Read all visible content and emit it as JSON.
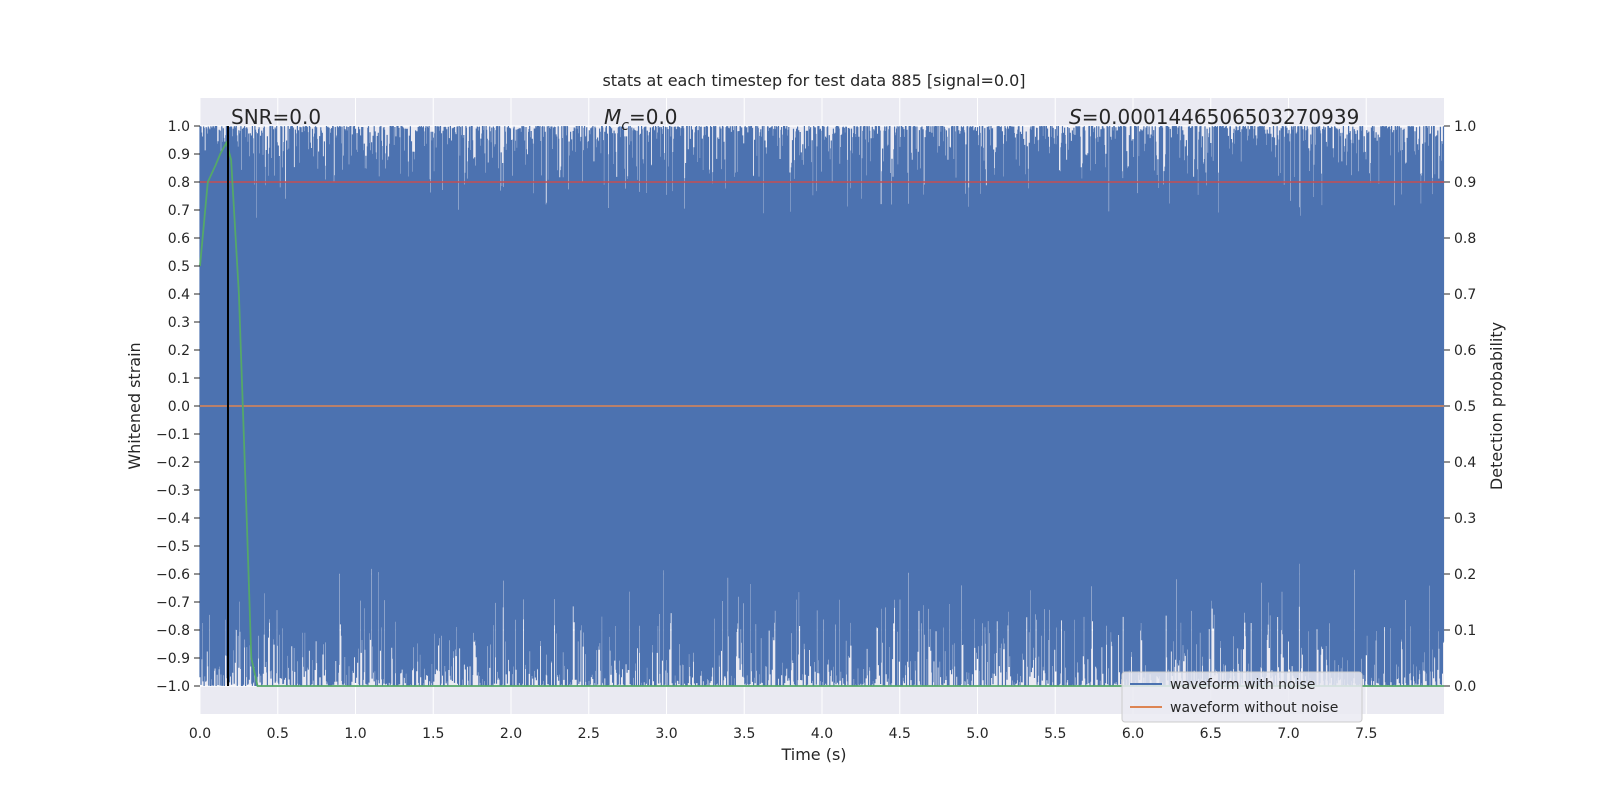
{
  "chart_data": {
    "type": "line",
    "title": "stats at each timestep for test data 885 [signal=0.0]",
    "xlabel": "Time (s)",
    "ylabel": "Whitened strain",
    "y2label": "Detection probability",
    "xlim": [
      0.0,
      8.0
    ],
    "ylim": [
      -1.1,
      1.1
    ],
    "y2lim": [
      -0.05,
      1.05
    ],
    "grid": true,
    "legend_position": "lower-right",
    "x_ticks": [
      "0.0",
      "0.5",
      "1.0",
      "1.5",
      "2.0",
      "2.5",
      "3.0",
      "3.5",
      "4.0",
      "4.5",
      "5.0",
      "5.5",
      "6.0",
      "6.5",
      "7.0",
      "7.5"
    ],
    "y_ticks": [
      "1.0",
      "0.9",
      "0.8",
      "0.7",
      "0.6",
      "0.5",
      "0.4",
      "0.3",
      "0.2",
      "0.1",
      "0.0",
      "−0.1",
      "−0.2",
      "−0.3",
      "−0.4",
      "−0.5",
      "−0.6",
      "−0.7",
      "−0.8",
      "−0.9",
      "−1.0"
    ],
    "y2_ticks": [
      "1.0",
      "0.9",
      "0.8",
      "0.7",
      "0.6",
      "0.5",
      "0.4",
      "0.3",
      "0.2",
      "0.1",
      "0.0"
    ],
    "annotations": {
      "snr": "SNR=0.0",
      "mc_symbol": "M",
      "mc_sub": "c",
      "mc_value": "=0.0",
      "s_symbol": "S",
      "s_value": "=0.0001446506503270939"
    },
    "series": [
      {
        "name": "waveform with noise",
        "color": "#4c72b0",
        "description_values": "dense noise between -1.0 and 1.0",
        "envelope_min": -1.0,
        "envelope_max": 1.0
      },
      {
        "name": "waveform without noise",
        "color": "#dd8452",
        "values_constant": 0.0
      },
      {
        "color": "#55a868",
        "axis": "right",
        "x": [
          0.0,
          0.05,
          0.1,
          0.13,
          0.17,
          0.2,
          0.25,
          0.3,
          0.33,
          0.37,
          0.4,
          8.0
        ],
        "y": [
          0.75,
          0.9,
          0.93,
          0.95,
          0.97,
          0.94,
          0.7,
          0.3,
          0.05,
          0.0,
          0.0,
          0.0
        ]
      }
    ],
    "threshold": {
      "color": "#c44e52",
      "axis": "right",
      "value": 0.9
    },
    "marker_line": {
      "color": "#000000",
      "x": 0.18
    }
  }
}
